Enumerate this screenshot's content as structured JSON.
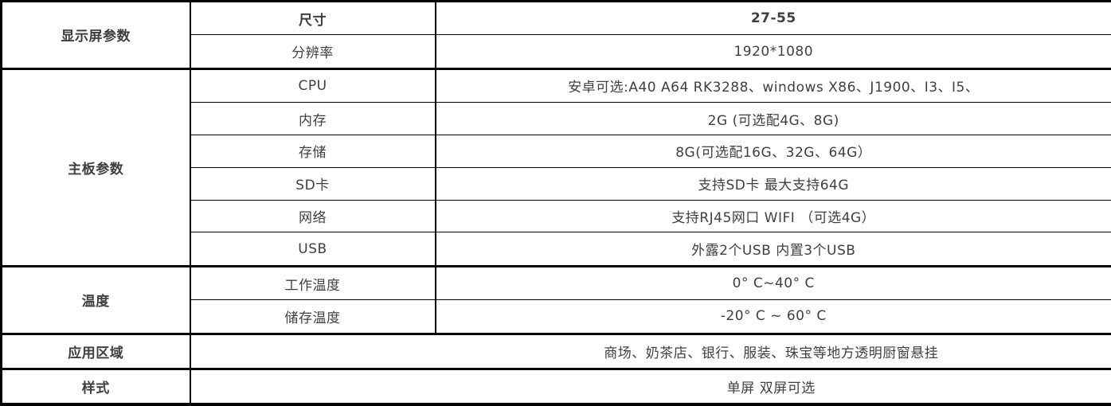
{
  "colors": {
    "accent": "#92278f",
    "text": "#3f3f3f",
    "border": "#000000"
  },
  "categories": {
    "display": "显示屏参数",
    "mainboard": "主板参数",
    "temperature": "温度",
    "application": "应用区域",
    "style": "样式"
  },
  "specs": {
    "size": {
      "label": "尺寸",
      "value": "27-55"
    },
    "resolution": {
      "label": "分辨率",
      "value": "1920*1080"
    },
    "cpu": {
      "label": "CPU",
      "value": "安卓可选:A40 A64 RK3288、windows X86、J1900、I3、I5、"
    },
    "memory": {
      "label": "内存",
      "value": "2G (可选配4G、8G)"
    },
    "storage": {
      "label": "存储",
      "value": "8G(可选配16G、32G、64G）"
    },
    "sd": {
      "label": "SD卡",
      "value": "支持SD卡 最大支持64G"
    },
    "network": {
      "label": "网络",
      "value": "支持RJ45网口  WIFI （可选4G）"
    },
    "usb": {
      "label": "USB",
      "value": "外露2个USB 内置3个USB"
    },
    "work_temp": {
      "label": "工作温度",
      "value": "0° C~40° C"
    },
    "store_temp": {
      "label": "储存温度",
      "value": "-20° C ~ 60° C"
    },
    "application": {
      "value": "商场、奶茶店、银行、服装、珠宝等地方透明厨窗悬挂"
    },
    "style": {
      "value": "单屏 双屏可选"
    }
  }
}
